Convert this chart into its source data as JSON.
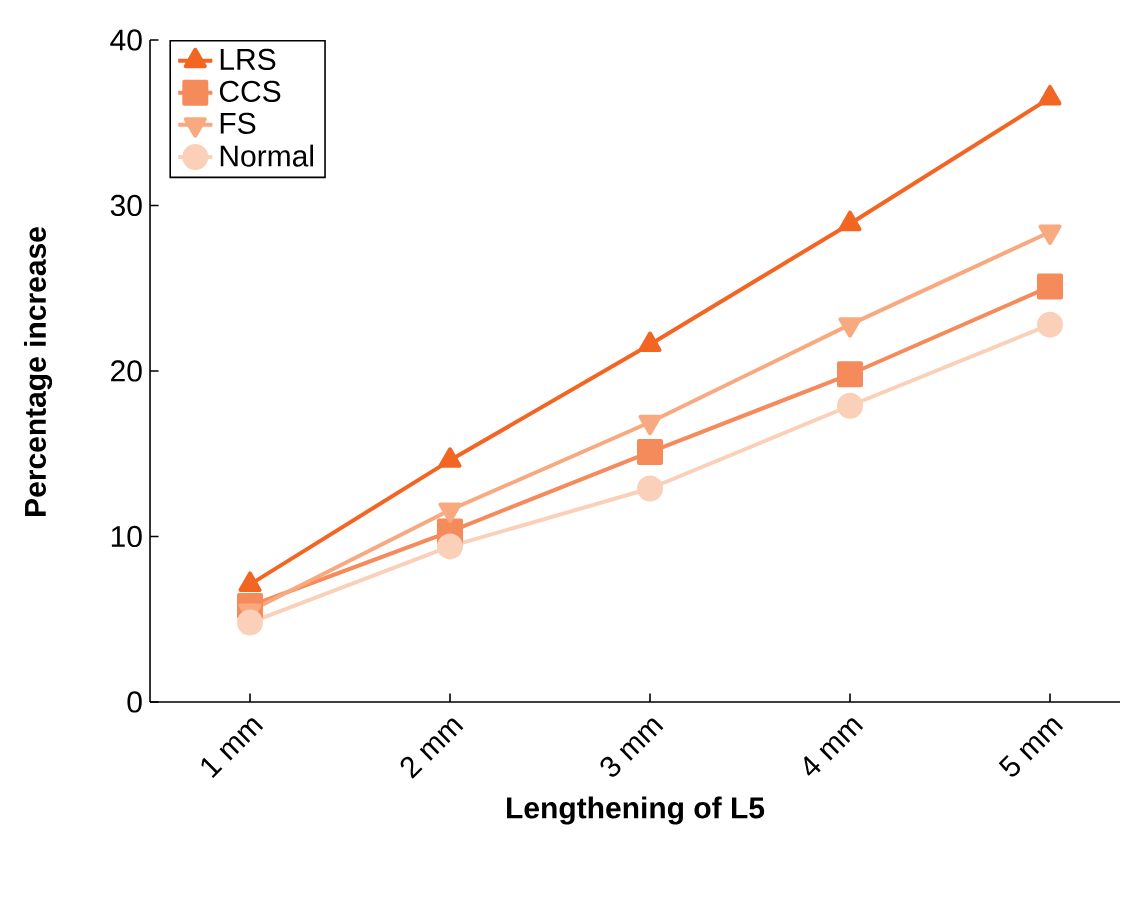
{
  "chart_data": {
    "type": "line",
    "xlabel": "Lengthening of L5",
    "ylabel": "Percentage increase",
    "categories": [
      "1 mm",
      "2 mm",
      "3 mm",
      "4 mm",
      "5 mm"
    ],
    "series": [
      {
        "name": "LRS",
        "color": "#f26522",
        "marker": "triangle",
        "values": [
          7.1,
          14.6,
          21.6,
          28.9,
          36.5
        ]
      },
      {
        "name": "CCS",
        "color": "#f58a5a",
        "marker": "square",
        "values": [
          5.8,
          10.3,
          15.1,
          19.8,
          25.1
        ]
      },
      {
        "name": "FS",
        "color": "#f8a97f",
        "marker": "triangle-down",
        "values": [
          5.5,
          11.6,
          16.9,
          22.8,
          28.4
        ]
      },
      {
        "name": "Normal",
        "color": "#fbd0b8",
        "marker": "circle",
        "values": [
          4.8,
          9.4,
          12.9,
          17.9,
          22.8
        ]
      }
    ],
    "ylim": [
      0,
      40
    ],
    "yticks": [
      0,
      10,
      20,
      30,
      40
    ],
    "grid": false,
    "legend": "top left",
    "line_style": "solid"
  }
}
